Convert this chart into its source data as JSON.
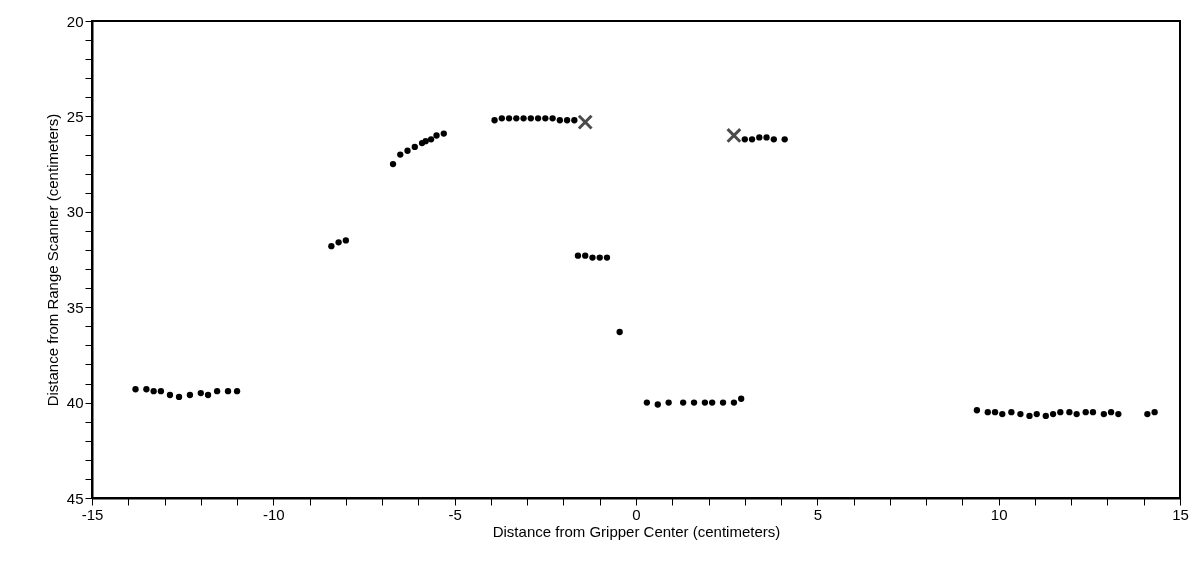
{
  "chart_data": {
    "type": "scatter",
    "xlabel": "Distance from Gripper Center (centimeters)",
    "ylabel": "Distance from Range Scanner (centimeters)",
    "xlim": [
      -15,
      15
    ],
    "ylim": [
      45,
      20
    ],
    "xticks": [
      -15,
      {
        "value": -14,
        "label": null
      },
      {
        "value": -13,
        "label": null
      },
      {
        "value": -12,
        "label": null
      },
      {
        "value": -11,
        "label": null
      },
      -10,
      {
        "value": -9,
        "label": null
      },
      {
        "value": -8,
        "label": null
      },
      {
        "value": -7,
        "label": null
      },
      {
        "value": -6,
        "label": null
      },
      -5,
      {
        "value": -4,
        "label": null
      },
      {
        "value": -3,
        "label": null
      },
      {
        "value": -2,
        "label": null
      },
      {
        "value": -1,
        "label": null
      },
      0,
      {
        "value": 1,
        "label": null
      },
      {
        "value": 2,
        "label": null
      },
      {
        "value": 3,
        "label": null
      },
      {
        "value": 4,
        "label": null
      },
      5,
      {
        "value": 6,
        "label": null
      },
      {
        "value": 7,
        "label": null
      },
      {
        "value": 8,
        "label": null
      },
      {
        "value": 9,
        "label": null
      },
      10,
      {
        "value": 11,
        "label": null
      },
      {
        "value": 12,
        "label": null
      },
      {
        "value": 13,
        "label": null
      },
      {
        "value": 14,
        "label": null
      },
      15
    ],
    "yticks": [
      20,
      {
        "value": 21,
        "label": null
      },
      {
        "value": 22,
        "label": null
      },
      {
        "value": 23,
        "label": null
      },
      {
        "value": 24,
        "label": null
      },
      25,
      {
        "value": 26,
        "label": null
      },
      {
        "value": 27,
        "label": null
      },
      {
        "value": 28,
        "label": null
      },
      {
        "value": 29,
        "label": null
      },
      30,
      {
        "value": 31,
        "label": null
      },
      {
        "value": 32,
        "label": null
      },
      {
        "value": 33,
        "label": null
      },
      {
        "value": 34,
        "label": null
      },
      35,
      {
        "value": 36,
        "label": null
      },
      {
        "value": 37,
        "label": null
      },
      {
        "value": 38,
        "label": null
      },
      {
        "value": 39,
        "label": null
      },
      40,
      {
        "value": 41,
        "label": null
      },
      {
        "value": 42,
        "label": null
      },
      {
        "value": 43,
        "label": null
      },
      {
        "value": 44,
        "label": null
      },
      45
    ],
    "grid": false,
    "legend": false,
    "series": [
      {
        "color": "#000000",
        "marker": "circle",
        "x": [
          -13.8,
          -13.5,
          -13.3,
          -13.1,
          -12.85,
          -12.6,
          -12.3,
          -12.0,
          -11.8,
          -11.55,
          -11.25,
          -11.0,
          -8.4,
          -8.2,
          -8.0,
          -6.7,
          -6.5,
          -6.3,
          -6.1,
          -5.9,
          -5.8,
          -5.65,
          -5.5,
          -5.3,
          -3.9,
          -3.7,
          -3.5,
          -3.3,
          -3.1,
          -2.9,
          -2.7,
          -2.5,
          -2.3,
          -2.1,
          -1.9,
          -1.7,
          3.0,
          3.2,
          3.4,
          3.6,
          3.8,
          4.1,
          -1.6,
          -1.4,
          -1.2,
          -1.0,
          -0.8,
          -0.45,
          0.3,
          0.6,
          0.9,
          1.3,
          1.6,
          1.9,
          2.1,
          2.4,
          2.7,
          2.9,
          9.4,
          9.7,
          9.9,
          10.1,
          10.35,
          10.6,
          10.85,
          11.05,
          11.3,
          11.5,
          11.7,
          11.95,
          12.15,
          12.4,
          12.6,
          12.9,
          13.1,
          13.3,
          14.1,
          14.3
        ],
        "values": [
          39.3,
          39.3,
          39.4,
          39.4,
          39.6,
          39.7,
          39.6,
          39.5,
          39.6,
          39.4,
          39.4,
          39.4,
          31.8,
          31.6,
          31.5,
          27.5,
          27.0,
          26.8,
          26.6,
          26.4,
          26.3,
          26.2,
          26.0,
          25.9,
          25.2,
          25.1,
          25.1,
          25.1,
          25.1,
          25.1,
          25.1,
          25.1,
          25.1,
          25.2,
          25.2,
          25.2,
          26.2,
          26.2,
          26.1,
          26.1,
          26.2,
          26.2,
          32.3,
          32.3,
          32.4,
          32.4,
          32.4,
          36.3,
          40.0,
          40.1,
          40.0,
          40.0,
          40.0,
          40.0,
          40.0,
          40.0,
          40.0,
          39.8,
          40.4,
          40.5,
          40.5,
          40.6,
          40.5,
          40.6,
          40.7,
          40.6,
          40.7,
          40.6,
          40.5,
          40.5,
          40.6,
          40.5,
          40.5,
          40.6,
          40.5,
          40.6,
          40.6,
          40.5
        ]
      },
      {
        "color": "#000000",
        "marker": "cross",
        "x": [
          -1.4,
          2.7
        ],
        "values": [
          25.3,
          26.0
        ]
      }
    ]
  }
}
